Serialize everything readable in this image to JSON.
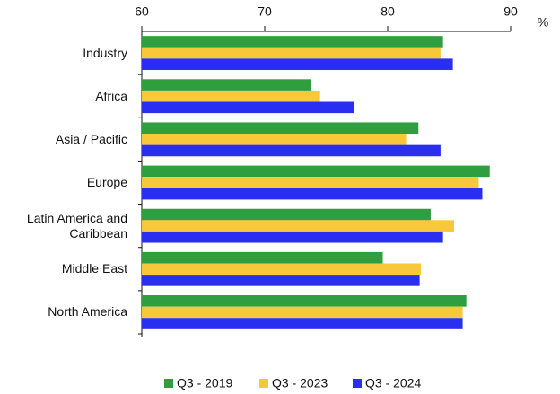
{
  "chart_data": {
    "type": "bar",
    "orientation": "horizontal",
    "x_label": "%",
    "categories": [
      "Industry",
      "Africa",
      "Asia / Pacific",
      "Europe",
      "Latin America and Caribbean",
      "Middle East",
      "North America"
    ],
    "series": [
      {
        "name": "Q3 - 2019",
        "color": "#2e9e3e",
        "values": [
          84.5,
          73.8,
          82.5,
          88.3,
          83.5,
          79.6,
          86.4
        ]
      },
      {
        "name": "Q3 - 2023",
        "color": "#f9c73a",
        "values": [
          84.3,
          74.5,
          81.5,
          87.4,
          85.4,
          82.7,
          86.1
        ]
      },
      {
        "name": "Q3 - 2024",
        "color": "#2a2ef0",
        "values": [
          85.3,
          77.3,
          84.3,
          87.7,
          84.5,
          82.6,
          86.1
        ]
      }
    ],
    "xlim": [
      60,
      90
    ],
    "xticks": [
      60,
      70,
      80,
      90
    ],
    "legend": "bottom"
  }
}
